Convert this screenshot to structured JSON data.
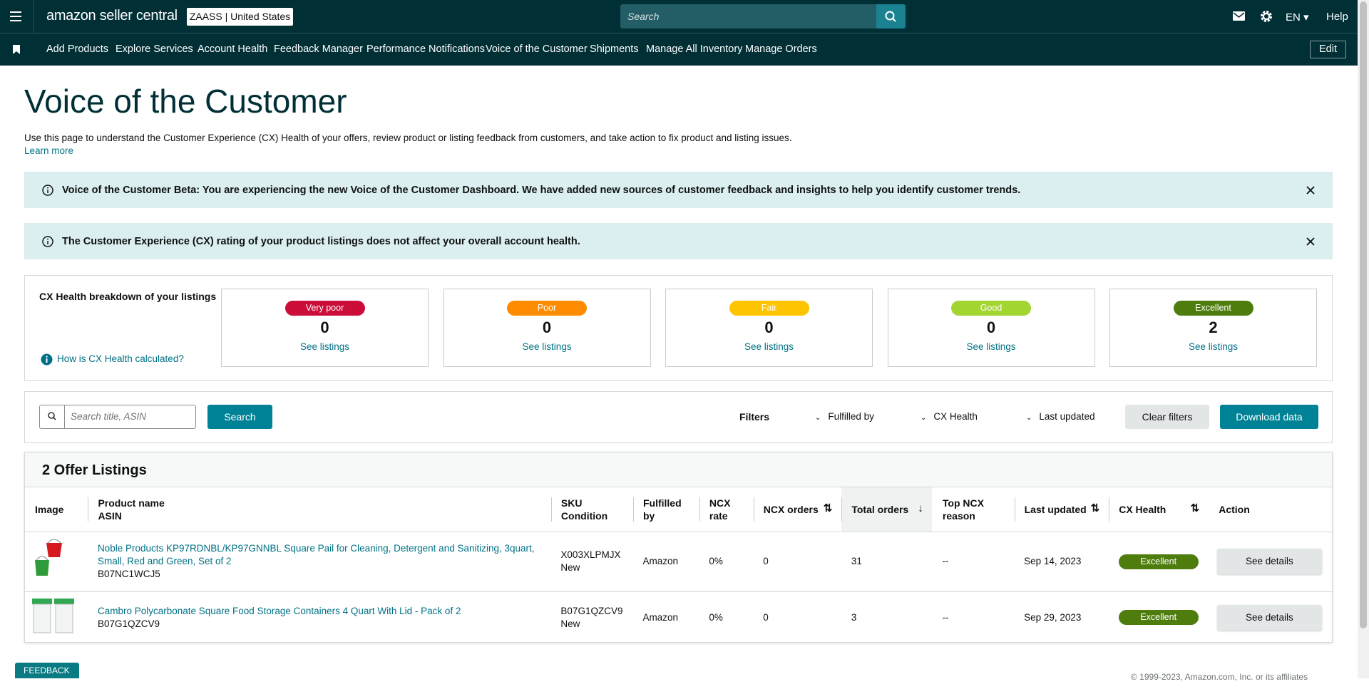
{
  "header": {
    "logo": "amazon seller central",
    "store": "ZAASS | United States",
    "search_placeholder": "Search",
    "language": "EN",
    "help": "Help"
  },
  "nav": {
    "items": [
      "Add Products",
      "Explore Services",
      "Account Health",
      "Feedback Manager",
      "Performance Notifications",
      "Voice of the Customer",
      "Shipments",
      "Manage All Inventory",
      "Manage Orders"
    ],
    "edit": "Edit"
  },
  "page": {
    "title": "Voice of the Customer",
    "description": "Use this page to understand the Customer Experience (CX) Health of your offers, review product or listing feedback from customers, and take action to fix product and listing issues.",
    "learn_more": "Learn more"
  },
  "alerts": [
    "Voice of the Customer Beta: You are experiencing the new Voice of the Customer Dashboard. We have added new sources of customer feedback and insights to help you identify customer trends.",
    "The Customer Experience (CX) rating of your product listings does not affect your overall account health."
  ],
  "cx_health": {
    "title": "CX Health breakdown of your listings",
    "help": "How is CX Health calculated?",
    "cards": [
      {
        "label": "Very poor",
        "count": "0",
        "link": "See listings"
      },
      {
        "label": "Poor",
        "count": "0",
        "link": "See listings"
      },
      {
        "label": "Fair",
        "count": "0",
        "link": "See listings"
      },
      {
        "label": "Good",
        "count": "0",
        "link": "See listings"
      },
      {
        "label": "Excellent",
        "count": "2",
        "link": "See listings"
      }
    ]
  },
  "filters": {
    "search_placeholder": "Search title, ASIN",
    "search_button": "Search",
    "label": "Filters",
    "dropdowns": [
      "Fulfilled by",
      "CX Health",
      "Last updated"
    ],
    "clear": "Clear filters",
    "download": "Download data"
  },
  "table": {
    "title": "2 Offer Listings",
    "columns": [
      [
        "Image"
      ],
      [
        "Product name",
        "ASIN"
      ],
      [
        "SKU",
        "Condition"
      ],
      [
        "Fulfilled by"
      ],
      [
        "NCX rate"
      ],
      [
        "NCX orders"
      ],
      [
        "Total orders"
      ],
      [
        "Top NCX reason"
      ],
      [
        "Last updated"
      ],
      [
        "CX Health"
      ],
      [
        "Action"
      ]
    ],
    "rows": [
      {
        "product": "Noble Products KP97RDNBL/KP97GNNBL Square Pail for Cleaning, Detergent and Sanitizing, 3quart, Small, Red and Green, Set of 2",
        "asin": "B07NC1WCJ5",
        "sku": "X003XLPMJX",
        "condition": "New",
        "fulfilled_by": "Amazon",
        "ncx_rate": "0%",
        "ncx_orders": "0",
        "total_orders": "31",
        "top_ncx_reason": "--",
        "last_updated": "Sep 14, 2023",
        "cx_health": "Excellent",
        "action": "See details"
      },
      {
        "product": "Cambro Polycarbonate Square Food Storage Containers 4 Quart With Lid - Pack of 2",
        "asin": "B07G1QZCV9",
        "sku": "B07G1QZCV9",
        "condition": "New",
        "fulfilled_by": "Amazon",
        "ncx_rate": "0%",
        "ncx_orders": "0",
        "total_orders": "3",
        "top_ncx_reason": "--",
        "last_updated": "Sep 29, 2023",
        "cx_health": "Excellent",
        "action": "See details"
      }
    ]
  },
  "footer": {
    "feedback": "FEEDBACK",
    "copyright": "© 1999-2023, Amazon.com, Inc. or its affiliates"
  }
}
